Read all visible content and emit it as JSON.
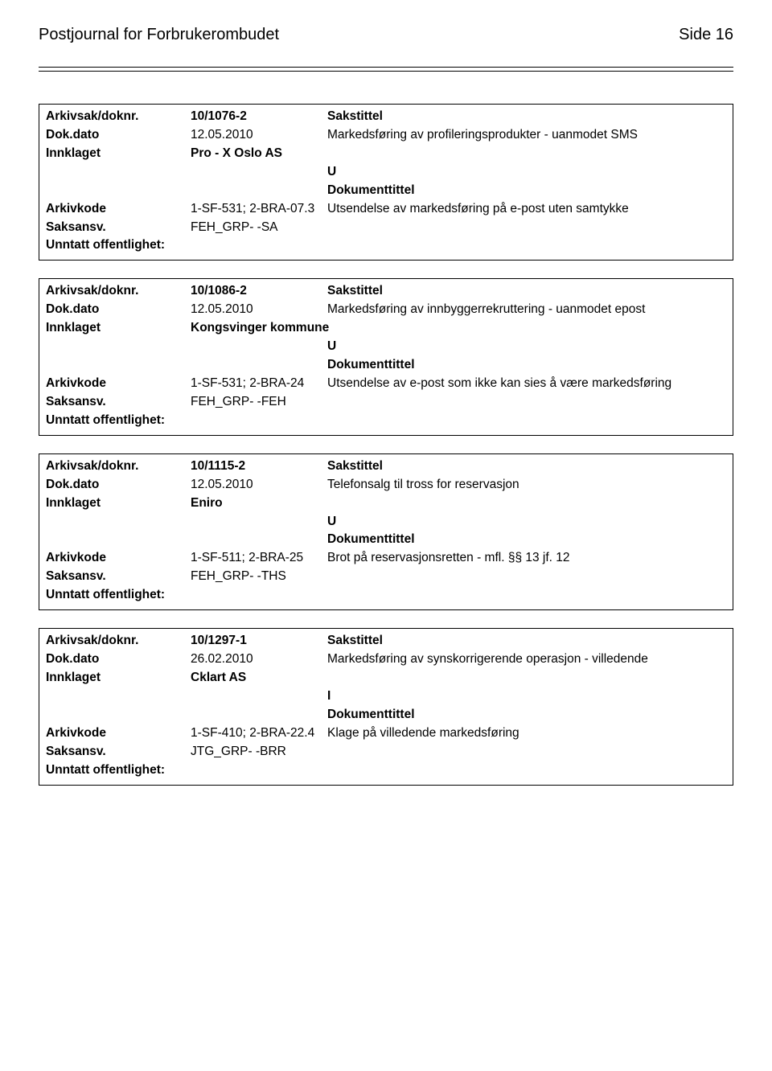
{
  "header": {
    "title": "Postjournal for Forbrukerombudet",
    "page_label": "Side 16"
  },
  "labels": {
    "arkivsak": "Arkivsak/doknr.",
    "sakstittel": "Sakstittel",
    "dokdato": "Dok.dato",
    "innklaget": "Innklaget",
    "dokumenttittel": "Dokumenttittel",
    "arkivkode": "Arkivkode",
    "saksansv": "Saksansv.",
    "unntatt": "Unntatt offentlighet:"
  },
  "records": [
    {
      "arkivsak": "10/1076-2",
      "dokdato": "12.05.2010",
      "sakstittel": "Markedsføring av profileringsprodukter - uanmodet SMS",
      "innklaget": "Pro - X  Oslo AS",
      "direction": "U",
      "arkivkode": "1-SF-531; 2-BRA-07.3",
      "dokumenttittel": "Utsendelse av markedsføring på e-post uten samtykke",
      "saksansv": "FEH_GRP- -SA"
    },
    {
      "arkivsak": "10/1086-2",
      "dokdato": "12.05.2010",
      "sakstittel": "Markedsføring av innbyggerrekruttering - uanmodet epost",
      "innklaget": "Kongsvinger kommune",
      "direction": "U",
      "arkivkode": "1-SF-531; 2-BRA-24",
      "dokumenttittel": "Utsendelse av e-post som ikke kan sies å være markedsføring",
      "saksansv": "FEH_GRP- -FEH"
    },
    {
      "arkivsak": "10/1115-2",
      "dokdato": "12.05.2010",
      "sakstittel": "Telefonsalg til tross for reservasjon",
      "innklaget": "Eniro",
      "direction": "U",
      "arkivkode": "1-SF-511; 2-BRA-25",
      "dokumenttittel": "Brot på reservasjonsretten - mfl. §§ 13 jf. 12",
      "saksansv": "FEH_GRP- -THS"
    },
    {
      "arkivsak": "10/1297-1",
      "dokdato": "26.02.2010",
      "sakstittel": "Markedsføring av synskorrigerende operasjon - villedende",
      "innklaget": "Cklart  AS",
      "direction": "I",
      "arkivkode": "1-SF-410; 2-BRA-22.4",
      "dokumenttittel": "Klage på villedende markedsføring",
      "saksansv": "JTG_GRP- -BRR"
    }
  ]
}
